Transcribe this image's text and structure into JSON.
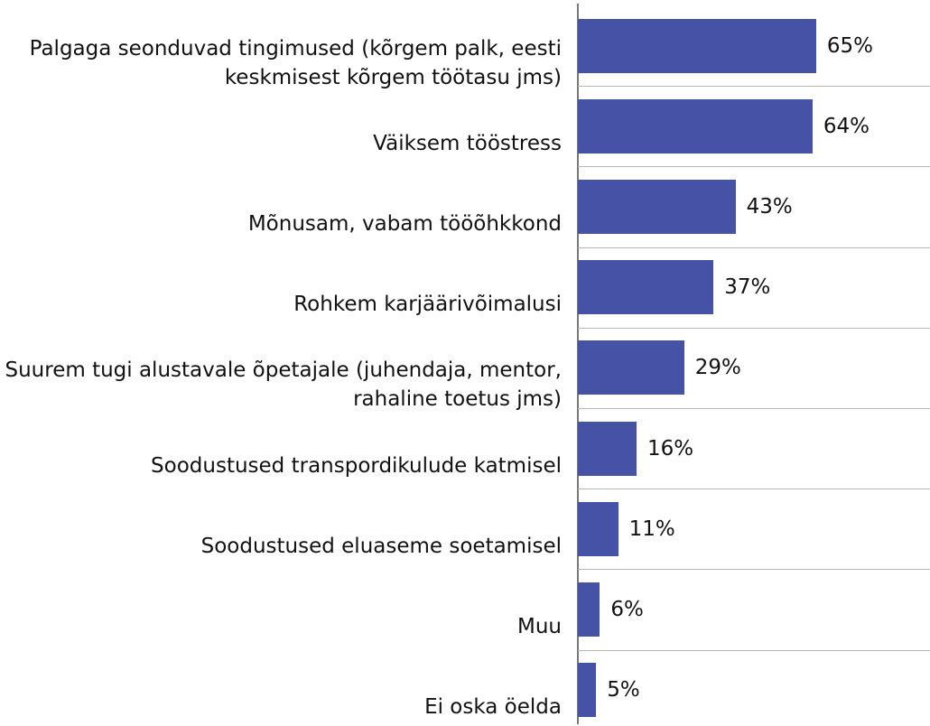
{
  "chart_data": {
    "type": "bar",
    "orientation": "horizontal",
    "color": "#4652a6",
    "categories": [
      "Palgaga seonduvad tingimused (kõrgem palk, eesti keskmisest kõrgem töötasu jms)",
      "Väiksem tööstress",
      "Mõnusam, vabam tööõhkkond",
      "Rohkem karjäärivõimalusi",
      "Suurem tugi alustavale õpetajale (juhendaja, mentor, rahaline toetus jms)",
      "Soodustused transpordikulude katmisel",
      "Soodustused eluaseme soetamisel",
      "Muu",
      "Ei oska öelda"
    ],
    "values": [
      65,
      64,
      43,
      37,
      29,
      16,
      11,
      6,
      5
    ],
    "value_labels": [
      "65%",
      "64%",
      "43%",
      "37%",
      "29%",
      "16%",
      "11%",
      "6%",
      "5%"
    ]
  }
}
